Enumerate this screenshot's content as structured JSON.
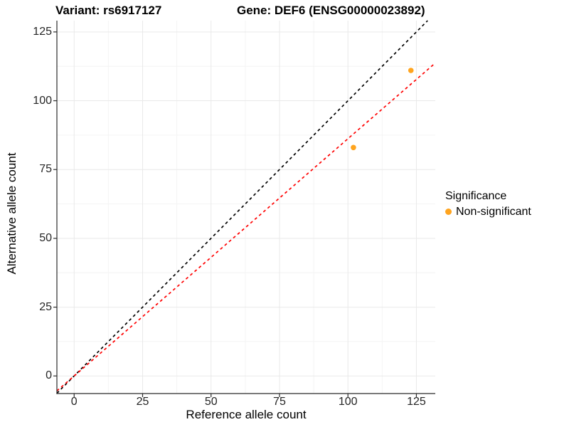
{
  "chart_data": {
    "type": "scatter",
    "title_left": "Variant: rs6917127",
    "title_right": "Gene: DEF6 (ENSG00000023892)",
    "xlabel": "Reference allele count",
    "ylabel": "Alternative allele count",
    "xlim": [
      -6.3,
      131.9
    ],
    "ylim": [
      -6.4,
      129.1
    ],
    "x_ticks": [
      0,
      25,
      50,
      75,
      100,
      125
    ],
    "y_ticks": [
      0,
      25,
      50,
      75,
      100,
      125
    ],
    "x_minor_ticks": [
      12.5,
      37.5,
      62.5,
      87.5,
      112.5
    ],
    "y_minor_ticks": [
      12.5,
      37.5,
      62.5,
      87.5,
      112.5
    ],
    "grid": true,
    "series": [
      {
        "name": "Non-significant",
        "color": "#FFA41E",
        "marker": "circle",
        "points": [
          [
            102,
            83
          ],
          [
            123,
            111
          ]
        ]
      }
    ],
    "reference_lines": [
      {
        "name": "identity",
        "slope": 1,
        "intercept": 0,
        "color": "#000000",
        "style": "dashed"
      },
      {
        "name": "allelic-ratio",
        "slope": 0.862,
        "intercept": 0,
        "color": "#FF0000",
        "style": "dashed"
      }
    ],
    "legend": {
      "title": "Significance",
      "position": "right",
      "entries": [
        {
          "label": "Non-significant",
          "color": "#FFA41E"
        }
      ]
    }
  },
  "colors": {
    "background": "#FFFFFF",
    "grid_major": "#E9E9E9",
    "grid_minor": "#F4F4F4",
    "axis": "#2B2B2B",
    "title_text": "#000000",
    "tick_text": "#262626",
    "point_orange": "#FFA41E",
    "line_red": "#FF0000",
    "line_black": "#000000"
  }
}
